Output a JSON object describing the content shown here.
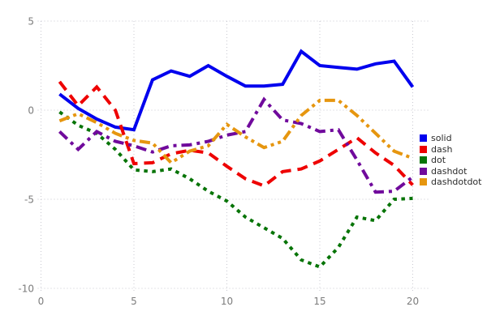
{
  "chart_data": {
    "type": "line",
    "title": "",
    "xlabel": "",
    "ylabel": "",
    "xlim": [
      0,
      21
    ],
    "ylim": [
      -10,
      5
    ],
    "grid": "dotted",
    "legend_position": "right-outside",
    "x_ticks": [
      "0",
      "5",
      "10",
      "15",
      "20"
    ],
    "x_tick_values": [
      0,
      5,
      10,
      15,
      20
    ],
    "y_ticks": [
      "5",
      "0",
      "-5",
      "-10"
    ],
    "y_tick_values": [
      5,
      0,
      -5,
      -10
    ],
    "x": [
      1,
      2,
      3,
      4,
      5,
      6,
      7,
      8,
      9,
      10,
      11,
      12,
      13,
      14,
      15,
      16,
      17,
      18,
      19,
      20
    ],
    "series": [
      {
        "name": "solid",
        "color": "#0000ee",
        "dash": "solid",
        "values": [
          0.9,
          0.1,
          -0.5,
          -0.95,
          -1.1,
          1.7,
          2.2,
          1.9,
          2.5,
          1.9,
          1.35,
          1.35,
          1.45,
          3.3,
          2.5,
          2.4,
          2.3,
          2.6,
          2.75,
          1.3
        ]
      },
      {
        "name": "dash",
        "color": "#ee0000",
        "dash": "dash",
        "values": [
          1.6,
          0.25,
          1.3,
          0.0,
          -3.0,
          -2.95,
          -2.45,
          -2.25,
          -2.4,
          -3.15,
          -3.85,
          -4.25,
          -3.45,
          -3.3,
          -2.85,
          -2.2,
          -1.55,
          -2.4,
          -3.1,
          -4.2
        ]
      },
      {
        "name": "dot",
        "color": "#077407",
        "dash": "dot",
        "values": [
          -0.1,
          -0.85,
          -1.3,
          -2.2,
          -3.35,
          -3.45,
          -3.3,
          -3.85,
          -4.55,
          -5.1,
          -6.0,
          -6.6,
          -7.2,
          -8.4,
          -8.8,
          -7.7,
          -6.0,
          -6.2,
          -5.0,
          -4.95
        ]
      },
      {
        "name": "dashdot",
        "color": "#700a9c",
        "dash": "dashdot",
        "values": [
          -1.2,
          -2.2,
          -1.2,
          -1.75,
          -2.0,
          -2.35,
          -2.0,
          -1.95,
          -1.75,
          -1.4,
          -1.2,
          0.6,
          -0.55,
          -0.75,
          -1.2,
          -1.1,
          -2.8,
          -4.6,
          -4.55,
          -3.75
        ]
      },
      {
        "name": "dashdotdot",
        "color": "#e6960f",
        "dash": "dashdotdot",
        "values": [
          -0.6,
          -0.2,
          -0.7,
          -1.3,
          -1.7,
          -1.85,
          -2.95,
          -2.3,
          -2.0,
          -0.8,
          -1.5,
          -2.1,
          -1.75,
          -0.3,
          0.55,
          0.55,
          -0.3,
          -1.3,
          -2.3,
          -2.7
        ]
      }
    ]
  },
  "legend": {
    "items": [
      {
        "label": "solid",
        "color": "#0000ee"
      },
      {
        "label": "dash",
        "color": "#ee0000"
      },
      {
        "label": "dot",
        "color": "#077407"
      },
      {
        "label": "dashdot",
        "color": "#700a9c"
      },
      {
        "label": "dashdotdot",
        "color": "#e6960f"
      }
    ]
  }
}
